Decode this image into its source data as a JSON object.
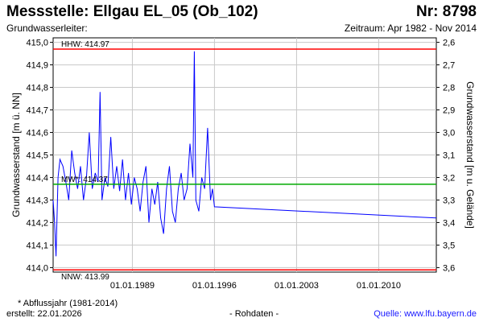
{
  "header": {
    "title": "Messstelle: Ellgau EL_05 (Ob_102)",
    "number": "Nr: 8798",
    "aquifer_label": "Grundwasserleiter:",
    "period": "Zeitraum: Apr 1982 - Nov 2014"
  },
  "footer": {
    "note": "* Abflussjahr (1981-2014)",
    "created": "erstellt:  22.01.2026",
    "data_type": "- Rohdaten -",
    "source": "Quelle:  www.lfu.bayern.de"
  },
  "colors": {
    "series": "#0000ff",
    "extreme_lines": "#ff0000",
    "mean_line": "#00aa00",
    "grid": "#c8c8c8"
  },
  "chart_data": {
    "type": "line",
    "title": "",
    "ylabel": "Grundwasserstand [m ü. NN]",
    "ylabel_right": "Grundwasserstand [m u. Gelände]",
    "xlabel": "",
    "ylim": [
      413.98,
      415.02
    ],
    "y_ticks": [
      "415,0",
      "414,9",
      "414,8",
      "414,7",
      "414,6",
      "414,5",
      "414,4",
      "414,3",
      "414,2",
      "414,1",
      "414,0"
    ],
    "y_tick_values": [
      415.0,
      414.9,
      414.8,
      414.7,
      414.6,
      414.5,
      414.4,
      414.3,
      414.2,
      414.1,
      414.0
    ],
    "y2_ticks": [
      "2,6",
      "2,7",
      "2,8",
      "2,9",
      "3,0",
      "3,1",
      "3,2",
      "3,3",
      "3,4",
      "3,5",
      "3,6"
    ],
    "x_range": [
      "1982-04-01",
      "2014-11-30"
    ],
    "x_ticks": [
      "01.01.1989",
      "01.01.1996",
      "01.01.2003",
      "01.01.2010"
    ],
    "x_tick_dates": [
      "1989-01-01",
      "1996-01-01",
      "2003-01-01",
      "2010-01-01"
    ],
    "grid": true,
    "reference_lines": [
      {
        "label": "HHW: 414.97",
        "value": 414.97,
        "color": "red"
      },
      {
        "label": "MW*: 414.37",
        "value": 414.37,
        "color": "green"
      },
      {
        "label": "NNW: 413.99",
        "value": 413.99,
        "color": "red"
      }
    ],
    "series": [
      {
        "values": [
          [
            "1982-04-01",
            414.3
          ],
          [
            "1982-05-15",
            414.2
          ],
          [
            "1982-07-01",
            414.05
          ],
          [
            "1982-09-01",
            414.4
          ],
          [
            "1982-11-01",
            414.48
          ],
          [
            "1983-02-01",
            414.45
          ],
          [
            "1983-05-01",
            414.38
          ],
          [
            "1983-08-01",
            414.3
          ],
          [
            "1983-11-01",
            414.52
          ],
          [
            "1984-02-01",
            414.42
          ],
          [
            "1984-05-01",
            414.35
          ],
          [
            "1984-08-01",
            414.45
          ],
          [
            "1984-11-01",
            414.3
          ],
          [
            "1985-02-01",
            414.4
          ],
          [
            "1985-05-01",
            414.6
          ],
          [
            "1985-08-01",
            414.35
          ],
          [
            "1985-11-01",
            414.42
          ],
          [
            "1986-02-01",
            414.38
          ],
          [
            "1986-04-01",
            414.78
          ],
          [
            "1986-06-01",
            414.3
          ],
          [
            "1986-09-01",
            414.4
          ],
          [
            "1986-12-01",
            414.36
          ],
          [
            "1987-03-01",
            414.58
          ],
          [
            "1987-06-01",
            414.35
          ],
          [
            "1987-09-01",
            414.45
          ],
          [
            "1987-12-01",
            414.34
          ],
          [
            "1988-03-01",
            414.48
          ],
          [
            "1988-06-01",
            414.3
          ],
          [
            "1988-09-01",
            414.42
          ],
          [
            "1988-12-01",
            414.28
          ],
          [
            "1989-03-01",
            414.4
          ],
          [
            "1989-06-01",
            414.35
          ],
          [
            "1989-09-01",
            414.25
          ],
          [
            "1989-12-01",
            414.38
          ],
          [
            "1990-03-01",
            414.45
          ],
          [
            "1990-06-01",
            414.2
          ],
          [
            "1990-09-01",
            414.35
          ],
          [
            "1990-12-01",
            414.28
          ],
          [
            "1991-03-01",
            414.38
          ],
          [
            "1991-06-01",
            414.22
          ],
          [
            "1991-09-01",
            414.15
          ],
          [
            "1991-12-01",
            414.35
          ],
          [
            "1992-03-01",
            414.45
          ],
          [
            "1992-06-01",
            414.25
          ],
          [
            "1992-09-01",
            414.2
          ],
          [
            "1992-12-01",
            414.35
          ],
          [
            "1993-03-01",
            414.42
          ],
          [
            "1993-06-01",
            414.3
          ],
          [
            "1993-09-01",
            414.35
          ],
          [
            "1993-12-01",
            414.55
          ],
          [
            "1994-03-01",
            414.4
          ],
          [
            "1994-04-15",
            414.96
          ],
          [
            "1994-06-01",
            414.3
          ],
          [
            "1994-09-01",
            414.25
          ],
          [
            "1994-12-01",
            414.4
          ],
          [
            "1995-03-01",
            414.35
          ],
          [
            "1995-06-01",
            414.62
          ],
          [
            "1995-09-01",
            414.3
          ],
          [
            "1995-11-01",
            414.35
          ],
          [
            "1996-01-01",
            414.27
          ],
          [
            "2014-11-30",
            414.22
          ]
        ]
      }
    ]
  }
}
